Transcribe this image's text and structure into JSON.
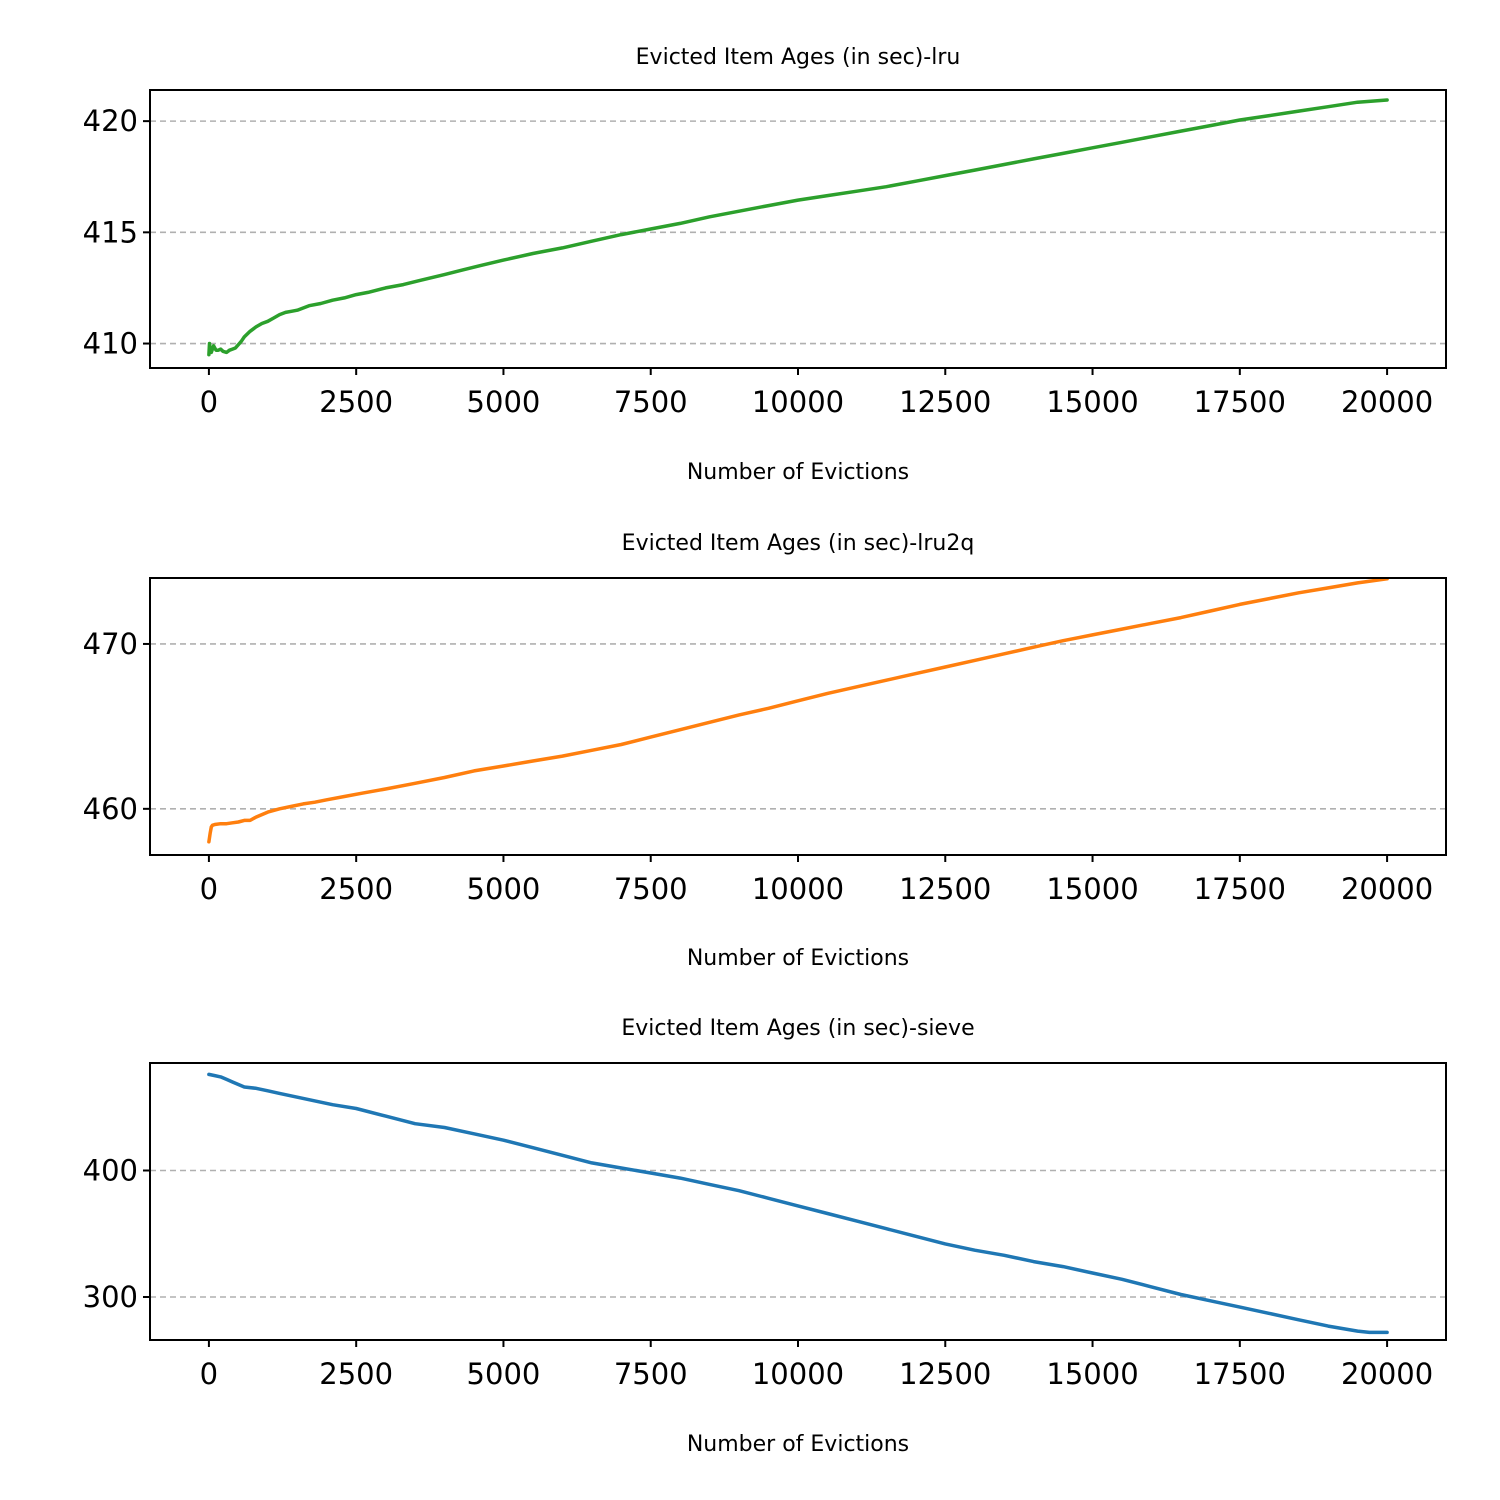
{
  "figure": {
    "background": "#ffffff"
  },
  "chart_data": [
    {
      "type": "line",
      "title": "Evicted Item Ages (in sec)-lru",
      "xlabel": "Number of Evictions",
      "ylabel": "",
      "xlim": [
        -1000,
        21000
      ],
      "ylim": [
        408.9,
        421.4
      ],
      "xticks": [
        0,
        2500,
        5000,
        7500,
        10000,
        12500,
        15000,
        17500,
        20000
      ],
      "xtick_labels": [
        "0",
        "2500",
        "5000",
        "7500",
        "10000",
        "12500",
        "15000",
        "17500",
        "20000"
      ],
      "yticks": [
        410,
        415,
        420
      ],
      "ytick_labels": [
        "410",
        "415",
        "420"
      ],
      "grid": "y-dashed",
      "color": "#2ca02c",
      "series": [
        {
          "x": [
            0,
            10,
            20,
            40,
            80,
            120,
            160,
            200,
            240,
            300,
            350,
            400,
            450,
            500,
            550,
            600,
            700,
            800,
            900,
            1000,
            1100,
            1200,
            1300,
            1400,
            1500,
            1700,
            1900,
            2100,
            2300,
            2500,
            2700,
            3000,
            3300,
            3600,
            4000,
            4300,
            4600,
            5000,
            5500,
            6000,
            6500,
            7000,
            7500,
            8000,
            8500,
            9000,
            9500,
            10000,
            10500,
            11000,
            11500,
            12000,
            12500,
            13000,
            13500,
            14000,
            14500,
            15000,
            15500,
            16000,
            16500,
            17000,
            17500,
            18000,
            18500,
            19000,
            19500,
            20000
          ],
          "values": [
            409.5,
            410.0,
            409.8,
            409.6,
            409.9,
            409.7,
            409.7,
            409.75,
            409.65,
            409.6,
            409.7,
            409.75,
            409.8,
            409.95,
            410.1,
            410.3,
            410.55,
            410.75,
            410.9,
            411.0,
            411.15,
            411.3,
            411.4,
            411.45,
            411.5,
            411.7,
            411.8,
            411.95,
            412.05,
            412.2,
            412.3,
            412.5,
            412.65,
            412.85,
            413.1,
            413.3,
            413.5,
            413.75,
            414.05,
            414.3,
            414.6,
            414.9,
            415.15,
            415.4,
            415.7,
            415.95,
            416.2,
            416.45,
            416.65,
            416.85,
            417.05,
            417.3,
            417.55,
            417.8,
            418.05,
            418.3,
            418.55,
            418.8,
            419.05,
            419.3,
            419.55,
            419.8,
            420.05,
            420.25,
            420.45,
            420.65,
            420.85,
            420.95
          ]
        }
      ]
    },
    {
      "type": "line",
      "title": "Evicted Item Ages (in sec)-lru2q",
      "xlabel": "Number of Evictions",
      "ylabel": "",
      "xlim": [
        -1000,
        21000
      ],
      "ylim": [
        457.2,
        474.0
      ],
      "xticks": [
        0,
        2500,
        5000,
        7500,
        10000,
        12500,
        15000,
        17500,
        20000
      ],
      "xtick_labels": [
        "0",
        "2500",
        "5000",
        "7500",
        "10000",
        "12500",
        "15000",
        "17500",
        "20000"
      ],
      "yticks": [
        460,
        470
      ],
      "ytick_labels": [
        "460",
        "470"
      ],
      "grid": "y-dashed",
      "color": "#ff7f0e",
      "series": [
        {
          "x": [
            0,
            20,
            40,
            60,
            100,
            200,
            300,
            400,
            500,
            600,
            700,
            800,
            900,
            1000,
            1200,
            1400,
            1600,
            1800,
            2000,
            2300,
            2600,
            3000,
            3500,
            4000,
            4500,
            5000,
            5500,
            6000,
            6500,
            7000,
            7500,
            8000,
            8500,
            9000,
            9500,
            10000,
            10500,
            11000,
            11500,
            12000,
            12500,
            13000,
            13500,
            14000,
            14500,
            15000,
            15500,
            16000,
            16500,
            17000,
            17500,
            18000,
            18500,
            19000,
            19500,
            20000
          ],
          "values": [
            458.0,
            458.5,
            458.9,
            459.0,
            459.05,
            459.1,
            459.1,
            459.15,
            459.2,
            459.3,
            459.3,
            459.5,
            459.65,
            459.8,
            460.0,
            460.15,
            460.3,
            460.4,
            460.55,
            460.75,
            460.95,
            461.2,
            461.55,
            461.9,
            462.3,
            462.6,
            462.9,
            463.2,
            463.55,
            463.9,
            464.35,
            464.8,
            465.25,
            465.7,
            466.1,
            466.55,
            467.0,
            467.4,
            467.8,
            468.2,
            468.6,
            469.0,
            469.4,
            469.8,
            470.2,
            470.55,
            470.9,
            471.25,
            471.6,
            472.0,
            472.4,
            472.75,
            473.1,
            473.4,
            473.7,
            473.95
          ]
        }
      ]
    },
    {
      "type": "line",
      "title": "Evicted Item Ages (in sec)-sieve",
      "xlabel": "Number of Evictions",
      "ylabel": "",
      "xlim": [
        -1000,
        21000
      ],
      "ylim": [
        266,
        485
      ],
      "xticks": [
        0,
        2500,
        5000,
        7500,
        10000,
        12500,
        15000,
        17500,
        20000
      ],
      "xtick_labels": [
        "0",
        "2500",
        "5000",
        "7500",
        "10000",
        "12500",
        "15000",
        "17500",
        "20000"
      ],
      "yticks": [
        300,
        400
      ],
      "ytick_labels": [
        "300",
        "400"
      ],
      "grid": "y-dashed",
      "color": "#1f77b4",
      "series": [
        {
          "x": [
            0,
            100,
            200,
            300,
            400,
            500,
            600,
            800,
            1000,
            1200,
            1500,
            1800,
            2100,
            2500,
            3000,
            3500,
            4000,
            4500,
            5000,
            5500,
            6000,
            6500,
            7000,
            7500,
            8000,
            8500,
            9000,
            9500,
            10000,
            10500,
            11000,
            11500,
            12000,
            12500,
            13000,
            13500,
            14000,
            14500,
            15000,
            15500,
            16000,
            16500,
            17000,
            17500,
            18000,
            18500,
            19000,
            19500,
            19700,
            20000
          ],
          "values": [
            476,
            475,
            474,
            472,
            470,
            468,
            466,
            465,
            463,
            461,
            458,
            455,
            452,
            449,
            443,
            437,
            434,
            429,
            424,
            418,
            412,
            406,
            402,
            398,
            394,
            389,
            384,
            378,
            372,
            366,
            360,
            354,
            348,
            342,
            337,
            333,
            328,
            324,
            319,
            314,
            308,
            302,
            297,
            292,
            287,
            282,
            277,
            273,
            272,
            272
          ]
        }
      ]
    }
  ]
}
